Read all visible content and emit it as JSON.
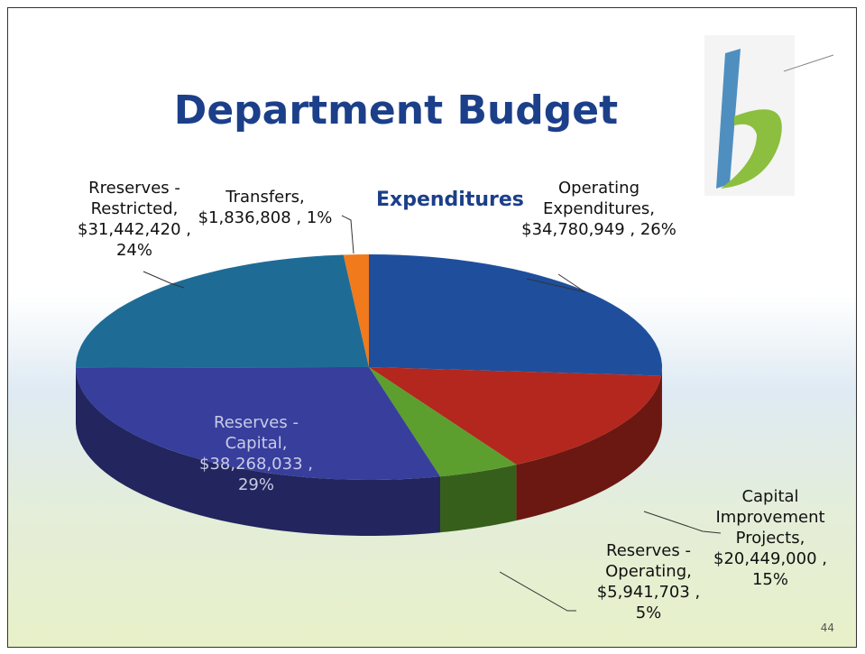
{
  "header": {
    "title": "Department Budget",
    "page_number": "44"
  },
  "chart_data": {
    "type": "pie",
    "title": "Expenditures",
    "categories": [
      "Operating Expenditures,",
      "Capital Improvement Projects,",
      "Reserves - Operating,",
      "Reserves - Capital,",
      "Rreserves - Restricted,",
      "Transfers,"
    ],
    "values": [
      34780949,
      20449000,
      5941703,
      38268033,
      31442420,
      1836808
    ],
    "value_labels": [
      "$34,780,949 ,",
      "$20,449,000 ,",
      "$5,941,703 ,",
      "$38,268,033 ,",
      "$31,442,420 ,",
      "$1,836,808 ,"
    ],
    "percent_labels": [
      "26%",
      "15%",
      "5%",
      "29%",
      "24%",
      "1%"
    ],
    "colors": [
      "#1f4f9c",
      "#b3271e",
      "#5c9f2e",
      "#383e9c",
      "#1e6c95",
      "#f07a1c"
    ]
  }
}
